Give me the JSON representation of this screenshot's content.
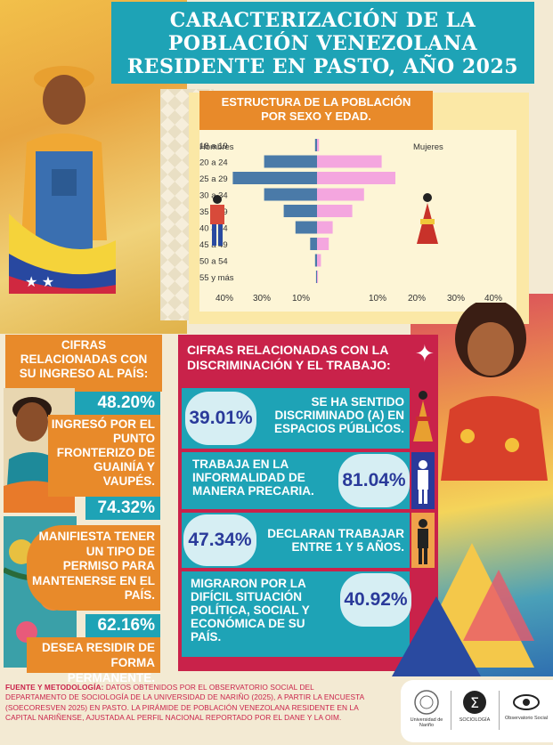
{
  "title": {
    "line1": "CARACTERIZACIÓN DE LA",
    "line2": "POBLACIÓN VENEZOLANA",
    "line3": "RESIDENTE EN PASTO, AÑO 2025"
  },
  "pyramid": {
    "title_line1": "ESTRUCTURA DE LA POBLACIÓN",
    "title_line2": "POR SEXO Y EDAD.",
    "label_men": "Hombres",
    "label_women": "Mujeres",
    "x_ticks": [
      "40%",
      "30%",
      "10%",
      "10%",
      "20%",
      "30%",
      "40%"
    ]
  },
  "chart_data": {
    "type": "bar",
    "categories": [
      "18 a 19",
      "20 a 24",
      "25 a 29",
      "30 a 34",
      "35 a 39",
      "40 a 44",
      "45 a 49",
      "50 a 54",
      "55 y más"
    ],
    "series": [
      {
        "name": "Hombres",
        "values": [
          1.0,
          27.0,
          43.0,
          27.0,
          17.0,
          11.0,
          3.5,
          1.0,
          0.5
        ]
      },
      {
        "name": "Mujeres",
        "values": [
          1.0,
          33.0,
          40.0,
          24.0,
          18.0,
          8.0,
          6.0,
          2.0,
          0.5
        ]
      }
    ],
    "colors": {
      "Hombres": "#4a7aa8",
      "Mujeres": "#f4a6df"
    },
    "xlim": [
      -45,
      45
    ]
  },
  "left_col": {
    "header_line1": "CIFRAS",
    "header_line2": "RELACIONADAS CON",
    "header_line3": "SU INGRESO AL PAÍS:",
    "stat1_pct": "48.20%",
    "stat1_l1": "INGRESÓ POR EL",
    "stat1_l2": "PUNTO",
    "stat1_l3": "FRONTERIZO DE",
    "stat1_l4": "GUAINÍA Y",
    "stat1_l5": "VAUPÉS.",
    "stat2_pct": "74.32%",
    "stat2_l1": "MANIFIESTA TENER",
    "stat2_l2": "UN TIPO DE",
    "stat2_l3": "PERMISO PARA",
    "stat2_l4": "MANTENERSE EN EL",
    "stat2_l5": "PAÍS.",
    "stat3_pct": "62.16%",
    "stat3_l1": "DESEA RESIDIR DE",
    "stat3_l2": "FORMA PERMANENTE."
  },
  "right_col": {
    "header_line1": "CIFRAS RELACIONADAS CON LA",
    "header_line2": "DISCRIMINACIÓN Y EL TRABAJO:",
    "row1_pct": "39.01%",
    "row1_l1": "SE HA SENTIDO",
    "row1_l2": "DISCRIMINADO (A) EN",
    "row1_l3": "ESPACIOS PÚBLICOS.",
    "row2_pct": "81.04%",
    "row2_l1": "TRABAJA EN LA",
    "row2_l2": "INFORMALIDAD DE",
    "row2_l3": "MANERA PRECARIA.",
    "row3_pct": "47.34%",
    "row3_l1": "DECLARAN TRABAJAR",
    "row3_l2": "ENTRE 1 Y 5 AÑOS.",
    "row4_pct": "40.92%",
    "row4_l1": "MIGRARON POR LA",
    "row4_l2": "DIFÍCIL SITUACIÓN",
    "row4_l3": "POLÍTICA, SOCIAL Y",
    "row4_l4": "ECONÓMICA DE SU",
    "row4_l5": "PAÍS."
  },
  "footer": {
    "label": "FUENTE Y METODOLOGÍA:",
    "text": " DATOS OBTENIDOS POR EL OBSERVATORIO SOCIAL DEL DEPARTAMENTO DE SOCIOLOGÍA DE LA UNIVERSIDAD DE NARIÑO (2025), A PARTIR LA ENCUESTA (SOECORESVEN 2025) EN PASTO. LA PIRÁMIDE DE POBLACIÓN VENEZOLANA RESIDENTE EN LA CAPITAL NARIÑENSE, AJUSTADA AL PERFIL NACIONAL REPORTADO POR EL DANE Y LA OIM."
  },
  "logos": {
    "univ": "Universidad de Nariño",
    "socio": "SOCIOLOGÍA",
    "obs": "Observatorio Social"
  }
}
